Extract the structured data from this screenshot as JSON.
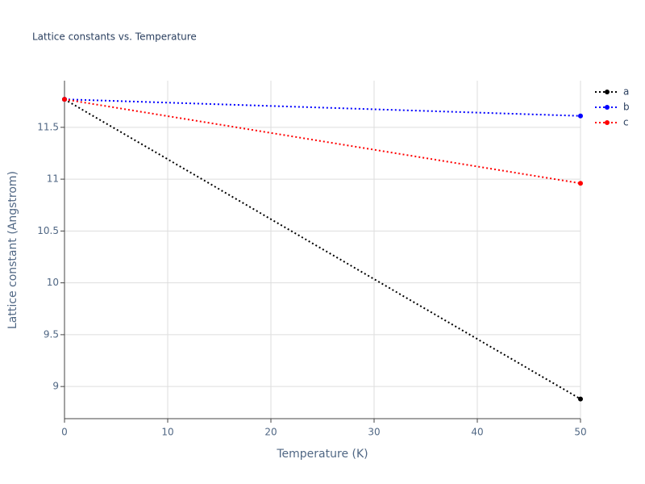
{
  "chart_data": {
    "type": "line",
    "title": "Lattice constants vs. Temperature",
    "x_label": "Temperature (K)",
    "y_label": "Lattice constant (Angstrom)",
    "x": [
      0,
      50
    ],
    "series": [
      {
        "name": "a",
        "color": "#000000",
        "values": [
          11.77,
          8.88
        ]
      },
      {
        "name": "b",
        "color": "#0000ff",
        "values": [
          11.77,
          11.61
        ]
      },
      {
        "name": "c",
        "color": "#ff0000",
        "values": [
          11.77,
          10.96
        ]
      }
    ],
    "xlim": [
      0,
      50
    ],
    "xticks": [
      0,
      10,
      20,
      30,
      40,
      50
    ],
    "ylim": [
      8.69,
      11.95
    ],
    "yticks": [
      9,
      9.5,
      10,
      10.5,
      11,
      11.5
    ],
    "grid": true,
    "legend": "top-right"
  }
}
